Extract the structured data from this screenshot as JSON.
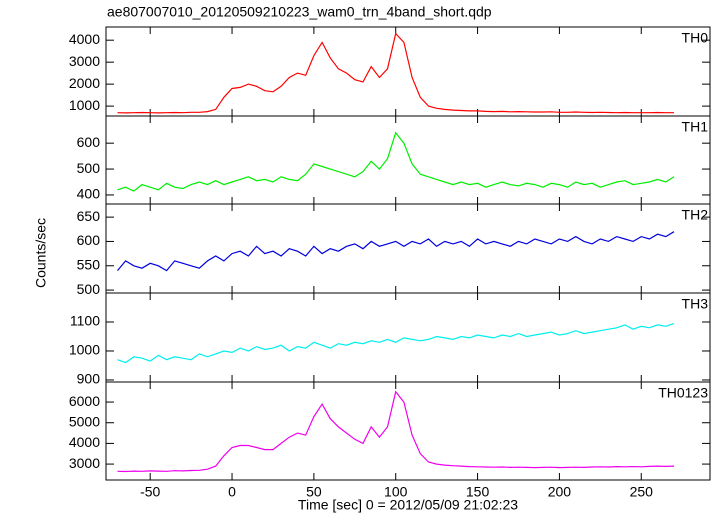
{
  "title": "ae807007010_20120509210223_wam0_trn_4band_short.qdp",
  "ylabel": "Counts/sec",
  "xlabel": "Time [sec] 0 = 2012/05/09 21:02:23",
  "chart_data": [
    {
      "type": "line",
      "label": "TH0",
      "color": "#ff0000",
      "x": [
        -70,
        -65,
        -60,
        -55,
        -50,
        -45,
        -40,
        -35,
        -30,
        -25,
        -20,
        -15,
        -10,
        -5,
        0,
        5,
        10,
        15,
        20,
        25,
        30,
        35,
        40,
        45,
        50,
        55,
        60,
        65,
        70,
        75,
        80,
        85,
        90,
        95,
        100,
        105,
        110,
        115,
        120,
        125,
        130,
        135,
        140,
        145,
        150,
        155,
        160,
        165,
        170,
        175,
        180,
        185,
        190,
        195,
        200,
        205,
        210,
        215,
        220,
        225,
        230,
        235,
        240,
        245,
        250,
        255,
        260,
        265,
        270
      ],
      "values": [
        700,
        690,
        700,
        710,
        700,
        690,
        700,
        710,
        700,
        720,
        720,
        750,
        850,
        1400,
        1800,
        1850,
        2000,
        1900,
        1700,
        1650,
        1900,
        2300,
        2500,
        2400,
        3300,
        3900,
        3200,
        2700,
        2500,
        2200,
        2100,
        2800,
        2300,
        2700,
        4300,
        3900,
        2300,
        1400,
        1000,
        900,
        850,
        820,
        800,
        780,
        780,
        760,
        750,
        760,
        740,
        750,
        740,
        730,
        730,
        740,
        720,
        720,
        730,
        720,
        710,
        720,
        710,
        700,
        710,
        700,
        700,
        700,
        710,
        700,
        700
      ],
      "xlim": [
        -77,
        292
      ],
      "ylim": [
        550,
        4600
      ],
      "yticks": [
        1000,
        2000,
        3000,
        4000
      ]
    },
    {
      "type": "line",
      "label": "TH1",
      "color": "#00ee00",
      "x": [
        -70,
        -65,
        -60,
        -55,
        -50,
        -45,
        -40,
        -35,
        -30,
        -25,
        -20,
        -15,
        -10,
        -5,
        0,
        5,
        10,
        15,
        20,
        25,
        30,
        35,
        40,
        45,
        50,
        55,
        60,
        65,
        70,
        75,
        80,
        85,
        90,
        95,
        100,
        105,
        110,
        115,
        120,
        125,
        130,
        135,
        140,
        145,
        150,
        155,
        160,
        165,
        170,
        175,
        180,
        185,
        190,
        195,
        200,
        205,
        210,
        215,
        220,
        225,
        230,
        235,
        240,
        245,
        250,
        255,
        260,
        265,
        270
      ],
      "values": [
        420,
        430,
        415,
        440,
        430,
        420,
        445,
        430,
        425,
        440,
        450,
        440,
        455,
        440,
        450,
        460,
        470,
        455,
        460,
        450,
        470,
        460,
        455,
        480,
        520,
        510,
        500,
        490,
        480,
        470,
        490,
        530,
        500,
        540,
        640,
        600,
        520,
        480,
        470,
        460,
        450,
        440,
        450,
        440,
        445,
        430,
        440,
        450,
        440,
        435,
        445,
        440,
        430,
        445,
        440,
        430,
        450,
        440,
        445,
        430,
        440,
        450,
        455,
        440,
        445,
        450,
        460,
        450,
        470
      ],
      "xlim": [
        -77,
        292
      ],
      "ylim": [
        365,
        705
      ],
      "yticks": [
        400,
        500,
        600
      ]
    },
    {
      "type": "line",
      "label": "TH2",
      "color": "#0000dd",
      "x": [
        -70,
        -65,
        -60,
        -55,
        -50,
        -45,
        -40,
        -35,
        -30,
        -25,
        -20,
        -15,
        -10,
        -5,
        0,
        5,
        10,
        15,
        20,
        25,
        30,
        35,
        40,
        45,
        50,
        55,
        60,
        65,
        70,
        75,
        80,
        85,
        90,
        95,
        100,
        105,
        110,
        115,
        120,
        125,
        130,
        135,
        140,
        145,
        150,
        155,
        160,
        165,
        170,
        175,
        180,
        185,
        190,
        195,
        200,
        205,
        210,
        215,
        220,
        225,
        230,
        235,
        240,
        245,
        250,
        255,
        260,
        265,
        270
      ],
      "values": [
        540,
        560,
        550,
        545,
        555,
        550,
        540,
        560,
        555,
        550,
        545,
        560,
        570,
        560,
        575,
        580,
        570,
        590,
        575,
        580,
        570,
        585,
        580,
        570,
        590,
        575,
        585,
        580,
        590,
        595,
        585,
        600,
        590,
        595,
        600,
        590,
        600,
        595,
        605,
        590,
        600,
        595,
        600,
        590,
        605,
        595,
        600,
        595,
        590,
        600,
        595,
        605,
        600,
        595,
        605,
        600,
        610,
        600,
        595,
        605,
        600,
        610,
        605,
        600,
        610,
        605,
        615,
        610,
        620
      ],
      "xlim": [
        -77,
        292
      ],
      "ylim": [
        494,
        677
      ],
      "yticks": [
        500,
        550,
        600,
        650
      ]
    },
    {
      "type": "line",
      "label": "TH3",
      "color": "#00eeee",
      "x": [
        -70,
        -65,
        -60,
        -55,
        -50,
        -45,
        -40,
        -35,
        -30,
        -25,
        -20,
        -15,
        -10,
        -5,
        0,
        5,
        10,
        15,
        20,
        25,
        30,
        35,
        40,
        45,
        50,
        55,
        60,
        65,
        70,
        75,
        80,
        85,
        90,
        95,
        100,
        105,
        110,
        115,
        120,
        125,
        130,
        135,
        140,
        145,
        150,
        155,
        160,
        165,
        170,
        175,
        180,
        185,
        190,
        195,
        200,
        205,
        210,
        215,
        220,
        225,
        230,
        235,
        240,
        245,
        250,
        255,
        260,
        265,
        270
      ],
      "values": [
        970,
        960,
        980,
        975,
        965,
        985,
        970,
        980,
        975,
        970,
        990,
        980,
        990,
        1000,
        995,
        1010,
        1000,
        1015,
        1005,
        1010,
        1020,
        1000,
        1015,
        1010,
        1030,
        1020,
        1010,
        1025,
        1020,
        1030,
        1025,
        1035,
        1030,
        1040,
        1030,
        1045,
        1040,
        1035,
        1040,
        1050,
        1045,
        1040,
        1050,
        1045,
        1055,
        1050,
        1045,
        1055,
        1050,
        1060,
        1050,
        1055,
        1060,
        1065,
        1055,
        1060,
        1070,
        1060,
        1065,
        1070,
        1075,
        1080,
        1090,
        1075,
        1085,
        1080,
        1090,
        1085,
        1095
      ],
      "xlim": [
        -77,
        292
      ],
      "ylim": [
        893,
        1200
      ],
      "yticks": [
        900,
        1000,
        1100
      ]
    },
    {
      "type": "line",
      "label": "TH0123",
      "color": "#ee00ee",
      "x": [
        -70,
        -65,
        -60,
        -55,
        -50,
        -45,
        -40,
        -35,
        -30,
        -25,
        -20,
        -15,
        -10,
        -5,
        0,
        5,
        10,
        15,
        20,
        25,
        30,
        35,
        40,
        45,
        50,
        55,
        60,
        65,
        70,
        75,
        80,
        85,
        90,
        95,
        100,
        105,
        110,
        115,
        120,
        125,
        130,
        135,
        140,
        145,
        150,
        155,
        160,
        165,
        170,
        175,
        180,
        185,
        190,
        195,
        200,
        205,
        210,
        215,
        220,
        225,
        230,
        235,
        240,
        245,
        250,
        255,
        260,
        265,
        270
      ],
      "values": [
        2650,
        2640,
        2660,
        2650,
        2670,
        2660,
        2650,
        2680,
        2670,
        2690,
        2700,
        2750,
        2900,
        3400,
        3800,
        3900,
        3900,
        3800,
        3700,
        3700,
        4000,
        4300,
        4500,
        4400,
        5300,
        5900,
        5200,
        4800,
        4500,
        4200,
        4000,
        4800,
        4300,
        4800,
        6500,
        6000,
        4400,
        3500,
        3100,
        3000,
        2950,
        2920,
        2900,
        2880,
        2870,
        2860,
        2850,
        2860,
        2840,
        2850,
        2840,
        2830,
        2840,
        2850,
        2830,
        2840,
        2850,
        2840,
        2860,
        2870,
        2860,
        2880,
        2870,
        2880,
        2870,
        2890,
        2900,
        2890,
        2900
      ],
      "xlim": [
        -77,
        292
      ],
      "ylim": [
        2230,
        6970
      ],
      "yticks": [
        3000,
        4000,
        5000,
        6000
      ],
      "xticks": [
        -50,
        0,
        50,
        100,
        150,
        200,
        250
      ]
    }
  ]
}
